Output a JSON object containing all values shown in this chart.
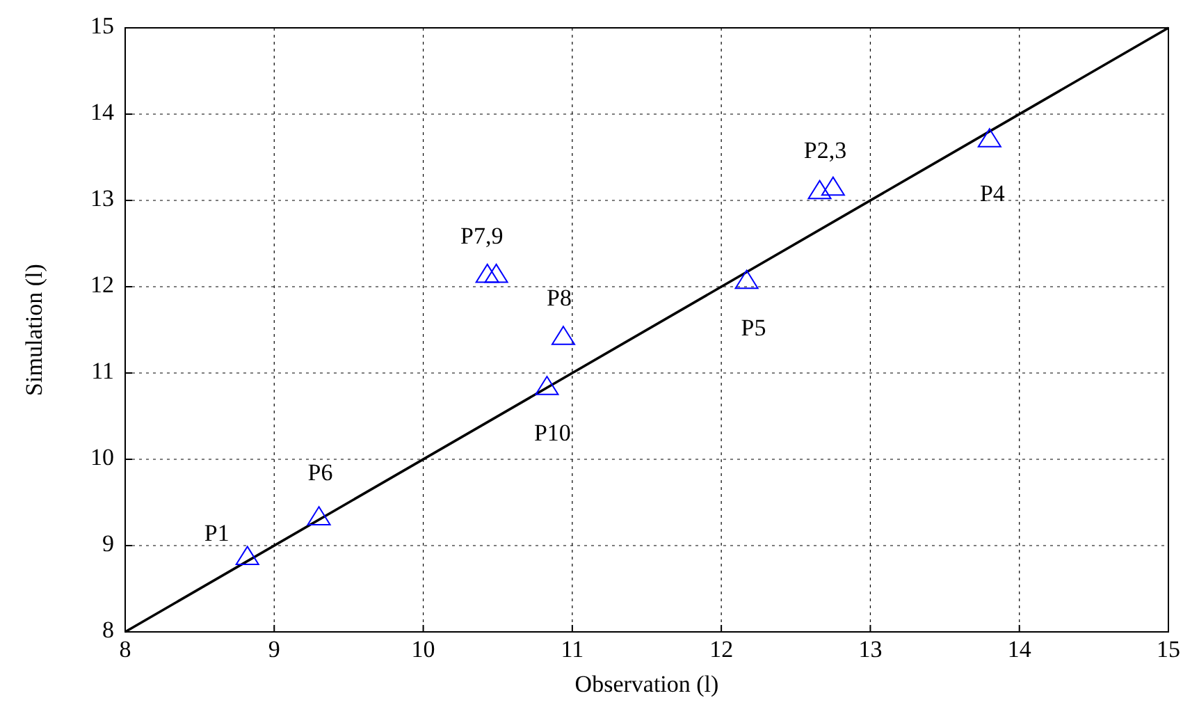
{
  "chart_data": {
    "type": "scatter",
    "xlabel": "Observation (l)",
    "ylabel": "Simulation (l)",
    "xlim": [
      8,
      15
    ],
    "ylim": [
      8,
      15
    ],
    "xticks": [
      8,
      9,
      10,
      11,
      12,
      13,
      14,
      15
    ],
    "yticks": [
      8,
      9,
      10,
      11,
      12,
      13,
      14,
      15
    ],
    "grid": true,
    "series": [
      {
        "type": "line",
        "color": "#000000",
        "x": [
          8,
          15
        ],
        "values": [
          8,
          15
        ],
        "marker": "none",
        "line_style": "solid"
      },
      {
        "color": "#0000ff",
        "marker": "triangle",
        "x": [
          8.82,
          9.3,
          10.83,
          10.94,
          10.43,
          10.49,
          12.17,
          12.66,
          12.75,
          13.8
        ],
        "values": [
          8.86,
          9.32,
          10.83,
          11.41,
          12.13,
          12.13,
          12.06,
          13.1,
          13.14,
          13.7
        ]
      }
    ],
    "annotations": [
      {
        "text": "P1",
        "x": 8.82,
        "y": 8.86
      },
      {
        "text": "P6",
        "x": 9.3,
        "y": 9.32
      },
      {
        "text": "P10",
        "x": 10.83,
        "y": 10.83
      },
      {
        "text": "P8",
        "x": 10.94,
        "y": 11.41
      },
      {
        "text": "P7,9",
        "x": 10.43,
        "y": 12.13
      },
      {
        "text": "P5",
        "x": 12.17,
        "y": 12.06
      },
      {
        "text": "P2,3",
        "x": 12.66,
        "y": 13.1
      },
      {
        "text": "P4",
        "x": 13.8,
        "y": 13.7
      }
    ]
  }
}
